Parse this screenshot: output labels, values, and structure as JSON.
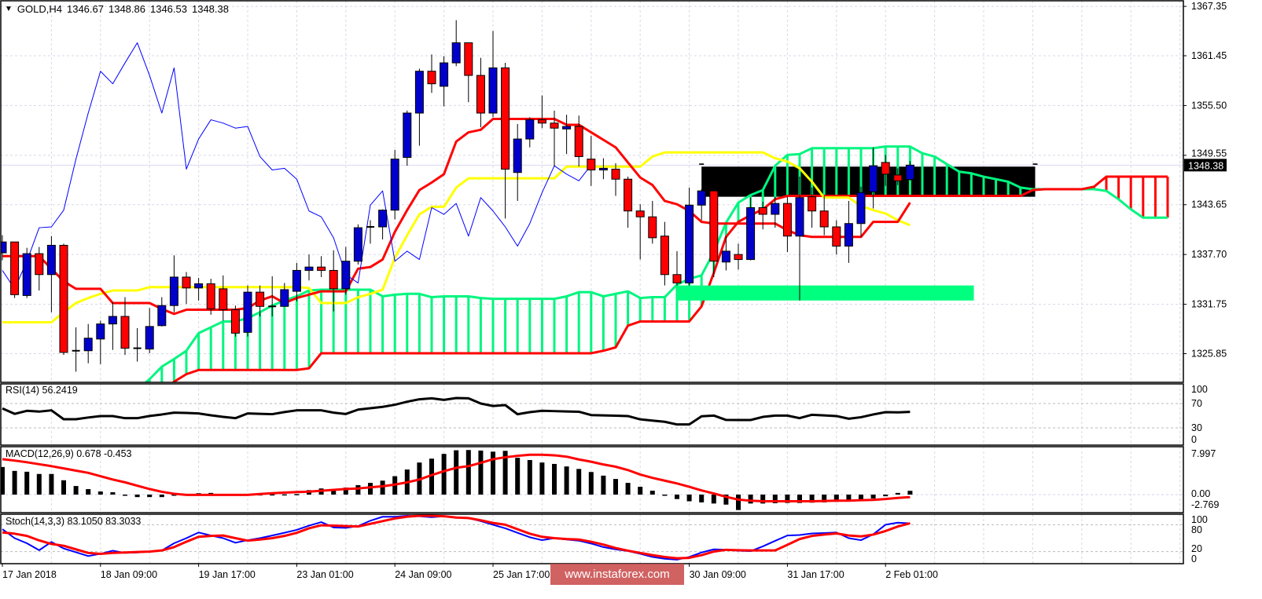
{
  "header": {
    "symbol": "GOLD,H4",
    "ohlc": [
      "1346.67",
      "1348.86",
      "1346.53",
      "1348.38"
    ],
    "menu_icon": "dropdown-triangle-icon"
  },
  "indicators": {
    "rsi_label": "RSI(14) 56.2419",
    "macd_label": "MACD(12,26,9) 0.678 -0.453",
    "stoch_label": "Stoch(14,3,3) 83.1050 83.3033"
  },
  "watermark": "www.instaforex.com",
  "colors": {
    "bull_candle": "#0000cc",
    "bear_candle": "#ff0000",
    "tenkan": "#ff0000",
    "kijun": "#ffff00",
    "chikou": "#0000ff",
    "senkou_a": "#00f57f",
    "senkou_b": "#ff0000",
    "rsi": "#000000",
    "macd_hist": "#000000",
    "macd_signal": "#ff0000",
    "stoch_main": "#0000ff",
    "stoch_signal": "#ff0000",
    "grid": "#d8d8e8"
  },
  "chart_data": {
    "type": "candlestick",
    "symbol": "GOLD",
    "timeframe": "H4",
    "x_tick_labels": [
      {
        "bar": 0,
        "label": "17 Jan 2018"
      },
      {
        "bar": 8,
        "label": "18 Jan 09:00"
      },
      {
        "bar": 16,
        "label": "19 Jan 17:00"
      },
      {
        "bar": 24,
        "label": "23 Jan 01:00"
      },
      {
        "bar": 32,
        "label": "24 Jan 09:00"
      },
      {
        "bar": 40,
        "label": "25 Jan 17:00"
      },
      {
        "bar": 56,
        "label": "30 Jan 09:00"
      },
      {
        "bar": 64,
        "label": "31 Jan 17:00"
      },
      {
        "bar": 72,
        "label": "2 Feb 01:00"
      }
    ],
    "price_ticks": [
      "1367.35",
      "1361.45",
      "1355.50",
      "1349.55",
      "1343.65",
      "1337.70",
      "1331.75",
      "1325.85"
    ],
    "ylim": [
      1322.8,
      1367.9
    ],
    "current_price": "1348.38",
    "candles_ohlc": [
      [
        1337.9,
        1340.0,
        1337.0,
        1339.2
      ],
      [
        1339.2,
        1339.2,
        1332.5,
        1332.9
      ],
      [
        1332.8,
        1338.5,
        1332.5,
        1337.8
      ],
      [
        1337.8,
        1338.6,
        1333.4,
        1335.3
      ],
      [
        1335.3,
        1339.9,
        1330.8,
        1338.8
      ],
      [
        1338.8,
        1339.0,
        1325.7,
        1326.0
      ],
      [
        1326.2,
        1329.0,
        1323.7,
        1326.1
      ],
      [
        1326.2,
        1329.4,
        1324.7,
        1327.7
      ],
      [
        1327.6,
        1329.8,
        1324.6,
        1329.4
      ],
      [
        1329.4,
        1332.0,
        1326.3,
        1330.3
      ],
      [
        1330.3,
        1332.6,
        1325.7,
        1326.5
      ],
      [
        1326.5,
        1328.9,
        1324.9,
        1326.4
      ],
      [
        1326.4,
        1331.3,
        1325.9,
        1329.1
      ],
      [
        1329.2,
        1332.6,
        1329.1,
        1331.6
      ],
      [
        1331.6,
        1337.6,
        1330.8,
        1335.0
      ],
      [
        1335.0,
        1335.6,
        1331.8,
        1333.7
      ],
      [
        1333.7,
        1334.9,
        1332.2,
        1334.2
      ],
      [
        1334.2,
        1334.8,
        1330.5,
        1331.2
      ],
      [
        1333.6,
        1335.2,
        1329.8,
        1331.1
      ],
      [
        1331.1,
        1331.6,
        1327.9,
        1328.3
      ],
      [
        1328.4,
        1334.0,
        1327.9,
        1333.2
      ],
      [
        1333.2,
        1334.0,
        1330.3,
        1331.5
      ],
      [
        1331.5,
        1335.1,
        1330.3,
        1331.4
      ],
      [
        1331.5,
        1334.3,
        1331.5,
        1333.5
      ],
      [
        1333.3,
        1336.7,
        1332.1,
        1335.8
      ],
      [
        1335.8,
        1337.7,
        1334.6,
        1336.2
      ],
      [
        1336.2,
        1337.5,
        1335.0,
        1335.8
      ],
      [
        1335.8,
        1338.2,
        1330.9,
        1333.6
      ],
      [
        1333.6,
        1338.6,
        1332.9,
        1336.9
      ],
      [
        1336.9,
        1341.3,
        1336.5,
        1340.9
      ],
      [
        1341.0,
        1341.8,
        1339.0,
        1341.0
      ],
      [
        1341.0,
        1343.1,
        1339.5,
        1343.0
      ],
      [
        1343.0,
        1350.2,
        1341.9,
        1349.1
      ],
      [
        1349.3,
        1354.9,
        1348.3,
        1354.6
      ],
      [
        1354.6,
        1359.9,
        1350.7,
        1359.6
      ],
      [
        1359.6,
        1361.6,
        1357.0,
        1358.1
      ],
      [
        1357.8,
        1361.4,
        1355.4,
        1360.6
      ],
      [
        1360.6,
        1365.7,
        1360.2,
        1363.0
      ],
      [
        1363.0,
        1363.0,
        1355.9,
        1359.1
      ],
      [
        1359.1,
        1361.2,
        1352.9,
        1354.6
      ],
      [
        1354.6,
        1364.4,
        1354.1,
        1360.0
      ],
      [
        1360.0,
        1360.6,
        1342.0,
        1347.9
      ],
      [
        1347.5,
        1353.3,
        1344.1,
        1351.5
      ],
      [
        1351.5,
        1354.1,
        1350.5,
        1353.8
      ],
      [
        1353.8,
        1356.7,
        1352.8,
        1353.4
      ],
      [
        1353.4,
        1354.9,
        1348.2,
        1352.8
      ],
      [
        1352.7,
        1354.4,
        1349.7,
        1353.0
      ],
      [
        1353.0,
        1354.3,
        1348.2,
        1349.4
      ],
      [
        1349.1,
        1351.9,
        1345.9,
        1347.8
      ],
      [
        1347.8,
        1349.2,
        1346.7,
        1348.0
      ],
      [
        1347.9,
        1348.6,
        1344.7,
        1346.7
      ],
      [
        1346.7,
        1347.0,
        1340.9,
        1342.9
      ],
      [
        1342.9,
        1343.7,
        1337.1,
        1342.2
      ],
      [
        1342.2,
        1344.1,
        1339.0,
        1339.7
      ],
      [
        1339.9,
        1341.6,
        1334.0,
        1335.3
      ],
      [
        1335.3,
        1338.1,
        1334.0,
        1334.3
      ],
      [
        1334.3,
        1345.7,
        1334.0,
        1343.6
      ],
      [
        1343.6,
        1345.5,
        1341.8,
        1345.3
      ],
      [
        1345.3,
        1346.0,
        1335.0,
        1336.9
      ],
      [
        1336.8,
        1339.9,
        1335.8,
        1338.1
      ],
      [
        1337.7,
        1339.0,
        1335.9,
        1337.1
      ],
      [
        1337.1,
        1344.5,
        1337.0,
        1343.3
      ],
      [
        1343.3,
        1344.0,
        1340.7,
        1342.5
      ],
      [
        1342.5,
        1344.6,
        1340.9,
        1343.8
      ],
      [
        1343.8,
        1344.6,
        1338.0,
        1339.9
      ],
      [
        1339.9,
        1347.0,
        1332.2,
        1344.5
      ],
      [
        1344.6,
        1345.7,
        1340.9,
        1342.9
      ],
      [
        1342.9,
        1344.7,
        1340.0,
        1341.0
      ],
      [
        1341.0,
        1341.8,
        1337.7,
        1338.7
      ],
      [
        1338.7,
        1344.1,
        1336.7,
        1341.4
      ],
      [
        1341.4,
        1345.8,
        1339.8,
        1345.1
      ],
      [
        1345.2,
        1350.5,
        1343.2,
        1348.3
      ],
      [
        1348.7,
        1349.6,
        1345.9,
        1347.3
      ],
      [
        1347.2,
        1348.0,
        1346.0,
        1346.5
      ],
      [
        1346.67,
        1348.86,
        1346.53,
        1348.38
      ]
    ],
    "ichimoku": {
      "tenkan": [
        1337.5,
        1337.5,
        1337.5,
        1337.5,
        1336,
        1334.5,
        1333.6,
        1333.6,
        1333.6,
        1331.9,
        1331.9,
        1331.9,
        1331.9,
        1331.2,
        1330.6,
        1331.1,
        1331.1,
        1331.1,
        1331.1,
        1331.1,
        1331.3,
        1332.2,
        1332.7,
        1331.9,
        1332.5,
        1332.9,
        1333.3,
        1333.3,
        1333.3,
        1336,
        1336.2,
        1337.1,
        1340.4,
        1343,
        1345.4,
        1346.3,
        1347.3,
        1351.2,
        1352.3,
        1352.6,
        1353.9,
        1353.9,
        1353.9,
        1353.9,
        1353.9,
        1353.9,
        1353.2,
        1353.2,
        1352.3,
        1351.4,
        1350.5,
        1348.7,
        1346.9,
        1346,
        1344.1,
        1343.7,
        1342.9,
        1341.6,
        1341.4,
        1341.4,
        1341.4,
        1341.4,
        1341.4,
        1341.4,
        1340.6,
        1340,
        1339.8,
        1339.8,
        1339.8,
        1339.8,
        1339.8,
        1341.6,
        1341.6,
        1341.6,
        1343.9
      ],
      "kijun": [
        1329.6,
        1329.6,
        1329.6,
        1329.6,
        1329.6,
        1330.8,
        1331.9,
        1332.5,
        1333,
        1333.4,
        1333.4,
        1333.4,
        1333.8,
        1333.8,
        1333.8,
        1333.8,
        1333.8,
        1333.8,
        1333.8,
        1333.8,
        1333.8,
        1333.8,
        1333.8,
        1333.8,
        1333.8,
        1333.7,
        1331.9,
        1331.9,
        1331.9,
        1332.6,
        1333,
        1333.5,
        1337.3,
        1340,
        1342.5,
        1343.4,
        1343.4,
        1345.7,
        1346.8,
        1346.8,
        1346.8,
        1346.8,
        1346.8,
        1346.8,
        1346.8,
        1346.8,
        1348.2,
        1348.2,
        1348.2,
        1348.2,
        1348.2,
        1348.2,
        1348.2,
        1349.4,
        1349.9,
        1349.9,
        1349.9,
        1349.9,
        1349.9,
        1349.9,
        1349.9,
        1349.9,
        1349.9,
        1349.2,
        1348.8,
        1348,
        1346.4,
        1344.5,
        1344.5,
        1344.5,
        1343.5,
        1343,
        1342.6,
        1341.8,
        1341.2
      ],
      "chikou_shift": 26,
      "cloud_start_bar": 11,
      "senkou_a": [
        1321.5,
        1322.8,
        1324.3,
        1325.2,
        1326.2,
        1328.3,
        1329,
        1329.7,
        1329.7,
        1330.1,
        1330.8,
        1331.6,
        1332.2,
        1332.7,
        1333.4,
        1333.5,
        1333.5,
        1333.5,
        1333.5,
        1333.5,
        1332.7,
        1332.9,
        1333,
        1333,
        1332.6,
        1332.7,
        1332.7,
        1332.7,
        1332.5,
        1332.4,
        1332.4,
        1332.4,
        1332.4,
        1332.4,
        1332.4,
        1332.7,
        1333.2,
        1333.2,
        1332.7,
        1333,
        1333.3,
        1332.5,
        1332.6,
        1332.6,
        1334.1,
        1334.8,
        1335.2,
        1338,
        1341.5,
        1343.9,
        1344.8,
        1345.4,
        1348.3,
        1349.6,
        1349.7,
        1350.4,
        1350.4,
        1350.4,
        1350.4,
        1350.4,
        1350.4,
        1350.6,
        1350.6,
        1350.6,
        1349.8,
        1349.4,
        1348.5,
        1347.6,
        1347.4,
        1347,
        1346.7,
        1346.4,
        1345.7,
        1345.5,
        1345.5,
        1345.5,
        1345.5,
        1345.5,
        1345.5,
        1345.3,
        1344.3,
        1343.1,
        1342.1,
        1342.1,
        1342.1
      ],
      "senkou_b": [
        1318,
        1319.5,
        1321,
        1322.5,
        1323.4,
        1323.9,
        1323.9,
        1323.9,
        1323.9,
        1323.9,
        1323.9,
        1323.9,
        1323.9,
        1323.9,
        1324.1,
        1325.9,
        1325.9,
        1325.9,
        1325.9,
        1325.9,
        1325.9,
        1325.9,
        1325.9,
        1325.9,
        1325.9,
        1325.9,
        1325.9,
        1325.9,
        1325.9,
        1325.9,
        1325.9,
        1325.9,
        1325.9,
        1325.9,
        1325.9,
        1325.9,
        1325.9,
        1325.9,
        1326.2,
        1326.6,
        1329.2,
        1329.7,
        1329.7,
        1329.7,
        1329.7,
        1329.7,
        1331.5,
        1335.5,
        1339.8,
        1341.6,
        1342.4,
        1343.1,
        1344.3,
        1344.7,
        1344.7,
        1344.7,
        1344.7,
        1344.7,
        1344.7,
        1344.7,
        1344.7,
        1344.7,
        1344.7,
        1344.7,
        1344.7,
        1344.7,
        1344.7,
        1344.7,
        1344.7,
        1344.7,
        1344.7,
        1344.7,
        1344.7,
        1345.4,
        1345.5,
        1345.5,
        1345.5,
        1345.5,
        1345.8,
        1347,
        1347,
        1347,
        1347,
        1347,
        1347
      ]
    },
    "annotations": [
      {
        "type": "rectangle",
        "color": "#000000",
        "from_bar": 57,
        "to_bar": 84.2,
        "price_top": 1348.2,
        "price_bottom": 1344.6
      },
      {
        "type": "rectangle",
        "color": "#00ff7f",
        "from_bar": 55,
        "to_bar": 79.2,
        "price_top": 1334.0,
        "price_bottom": 1332.2
      }
    ],
    "rsi": {
      "period": 14,
      "levels": [
        70,
        30
      ],
      "tick_labels": [
        "100",
        "70",
        "30",
        "0"
      ],
      "ylim": [
        0,
        100
      ],
      "values": [
        62,
        53,
        58,
        56.7,
        58.8,
        44.2,
        44.2,
        47,
        49.4,
        49.4,
        45.9,
        45.9,
        49.5,
        52,
        55,
        54.5,
        53.7,
        50.6,
        48,
        45.9,
        53.7,
        53,
        52.5,
        56,
        58.8,
        58.8,
        58.8,
        55,
        52.8,
        60,
        62.3,
        64.5,
        68,
        73,
        77,
        78.6,
        76,
        79,
        78.6,
        70,
        66,
        67.4,
        52.4,
        55.8,
        58,
        57.5,
        57,
        56.5,
        51,
        50.5,
        50,
        49.4,
        44,
        42,
        40,
        35.6,
        35.6,
        49,
        50.2,
        43,
        42.9,
        42.9,
        48,
        50.2,
        50.2,
        46,
        51.5,
        50.5,
        49.4,
        45,
        47.5,
        52,
        55.8,
        55.5,
        56.2419
      ]
    },
    "macd": {
      "params": [
        12,
        26,
        9
      ],
      "tick_labels": [
        "7.997",
        "0.00",
        "-2.769"
      ],
      "ylim": [
        -2.769,
        7.997
      ],
      "histogram": [
        4.95,
        4.25,
        4.1,
        3.7,
        3.7,
        2.57,
        1.54,
        0.98,
        0.56,
        0.42,
        -0.15,
        -0.45,
        -0.45,
        -0.45,
        -0.1,
        0.05,
        0.25,
        0.3,
        0.05,
        0.05,
        0.05,
        0.05,
        0.05,
        0.05,
        0.1,
        0.8,
        1.1,
        1.0,
        1.26,
        1.7,
        2.1,
        2.5,
        3.3,
        4.5,
        5.75,
        6.45,
        7.3,
        7.95,
        7.997,
        7.9,
        7.7,
        7.85,
        6.6,
        6.2,
        5.75,
        5.5,
        5.05,
        4.6,
        4.05,
        3.4,
        2.8,
        2.1,
        1.4,
        0.7,
        -0.1,
        -0.8,
        -1.2,
        -1.4,
        -1.6,
        -1.8,
        -2.769,
        -1.6,
        -1.6,
        -1.55,
        -1.5,
        -1.5,
        -1.45,
        -1.4,
        -1.3,
        -1.2,
        -1.0,
        -0.7,
        -0.3,
        0.3,
        0.678
      ],
      "signal": [
        6.35,
        6.1,
        5.8,
        5.45,
        5.1,
        4.7,
        4.3,
        3.9,
        3.3,
        2.7,
        2.2,
        1.6,
        1.0,
        0.5,
        0.15,
        -0.05,
        -0.05,
        -0.05,
        -0.05,
        -0.05,
        -0.05,
        0.1,
        0.25,
        0.35,
        0.45,
        0.52,
        0.68,
        0.85,
        1.0,
        1.1,
        1.3,
        1.5,
        1.8,
        2.2,
        2.7,
        3.5,
        4.2,
        4.8,
        5.1,
        5.7,
        6.35,
        6.7,
        6.95,
        7.15,
        7.15,
        7.05,
        6.8,
        6.3,
        5.9,
        5.4,
        5.0,
        4.4,
        3.6,
        3.0,
        2.5,
        2.0,
        1.4,
        0.75,
        0.2,
        -0.4,
        -0.9,
        -1.1,
        -1.2,
        -1.2,
        -1.2,
        -1.2,
        -1.2,
        -1.15,
        -1.1,
        -1.1,
        -1.0,
        -0.95,
        -0.8,
        -0.6,
        -0.453
      ]
    },
    "stochastic": {
      "params": [
        14,
        3,
        3
      ],
      "levels": [
        80,
        20
      ],
      "tick_labels": [
        "100",
        "80",
        "20",
        "0"
      ],
      "ylim": [
        0,
        100
      ],
      "main": [
        70,
        50,
        38.6,
        23,
        41.5,
        27,
        18.5,
        10,
        15,
        22,
        17,
        18,
        20,
        22.5,
        38.6,
        50,
        62.7,
        55.9,
        50,
        39.8,
        45.5,
        50,
        55.9,
        62,
        68.5,
        78,
        85.8,
        74,
        73,
        77,
        89,
        97.8,
        97.8,
        100,
        99,
        97,
        99,
        96,
        95,
        88,
        80,
        72,
        62,
        52,
        45.5,
        50,
        47,
        44.4,
        38,
        30,
        25,
        21.3,
        15,
        8,
        4,
        2,
        8,
        18,
        25,
        24.2,
        22,
        21,
        31.7,
        44,
        55.9,
        57,
        60.5,
        61.5,
        62.7,
        50,
        45.5,
        58.7,
        80,
        84.6,
        83.105
      ],
      "signal": [
        62.7,
        60,
        55,
        45,
        37,
        33,
        25,
        17,
        15,
        17,
        18,
        19,
        20,
        22.5,
        30,
        42,
        53,
        55,
        55.9,
        50,
        44.4,
        47,
        50,
        55,
        62,
        72,
        78.8,
        78,
        77,
        76,
        82,
        88,
        94,
        98,
        100,
        100,
        99,
        96,
        95,
        90,
        84,
        80,
        70,
        60,
        53,
        50,
        48,
        47,
        42,
        35.7,
        28,
        22,
        17,
        12,
        8,
        5,
        6,
        12,
        20,
        24,
        23,
        22.5,
        22.5,
        22.5,
        35,
        48,
        55,
        58,
        60.5,
        56,
        54,
        58,
        66,
        76,
        83.3033
      ]
    }
  }
}
